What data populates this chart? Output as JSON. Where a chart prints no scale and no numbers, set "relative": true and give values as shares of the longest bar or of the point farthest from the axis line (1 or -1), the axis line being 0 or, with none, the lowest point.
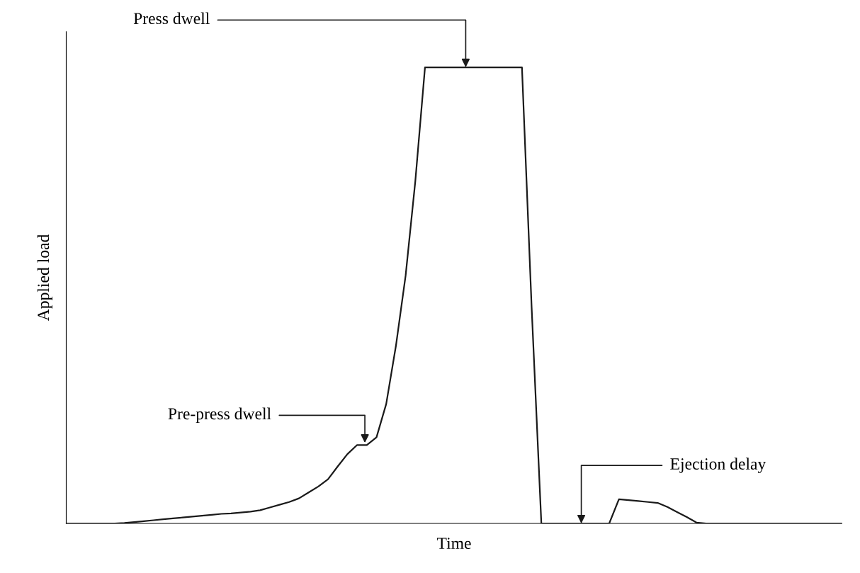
{
  "chart_data": {
    "type": "line",
    "relative": true,
    "xlabel": "Time",
    "ylabel": "Applied load",
    "categories": [
      null,
      null,
      null,
      null,
      null,
      null,
      null,
      null,
      null,
      null,
      null,
      null,
      null,
      null,
      null,
      null,
      null,
      null,
      null,
      null,
      null,
      null,
      null,
      null,
      null,
      null,
      null,
      null,
      null,
      null,
      null,
      null,
      null,
      null,
      null,
      null,
      null,
      null,
      null,
      null,
      null,
      null,
      null,
      null,
      null,
      null,
      null,
      null,
      null,
      null,
      null,
      null,
      null,
      null,
      null,
      null,
      null,
      null,
      null,
      null,
      null,
      null,
      null,
      null,
      null,
      null,
      null,
      null,
      null,
      null,
      null,
      null,
      null,
      null,
      null,
      null,
      null,
      null,
      null,
      null,
      null
    ],
    "tick_labels": false,
    "marker": "none",
    "line_style": "solid",
    "series": [
      {
        "color": "#1a1a1a",
        "values": [
          0,
          0,
          0,
          0,
          0,
          0,
          0.001,
          0.003,
          0.005,
          0.007,
          0.009,
          0.011,
          0.013,
          0.015,
          0.017,
          0.019,
          0.021,
          0.022,
          0.024,
          0.026,
          0.029,
          0.035,
          0.041,
          0.047,
          0.055,
          0.068,
          0.081,
          0.097,
          0.125,
          0.152,
          0.172,
          0.172,
          0.189,
          0.262,
          0.389,
          0.543,
          0.75,
          1,
          1,
          1,
          1,
          1,
          1,
          1,
          1,
          1,
          1,
          1,
          0.473,
          0,
          0,
          0,
          0,
          0,
          0,
          0,
          0,
          0.053,
          0.051,
          0.049,
          0.047,
          0.045,
          0.036,
          0.025,
          0.014,
          0.002,
          0,
          0,
          0,
          0,
          0,
          0,
          0,
          0,
          0,
          0,
          0,
          0,
          0,
          0,
          0
        ]
      }
    ],
    "annotations": [
      "Press dwell",
      "Pre-press dwell",
      "Ejection delay"
    ]
  }
}
